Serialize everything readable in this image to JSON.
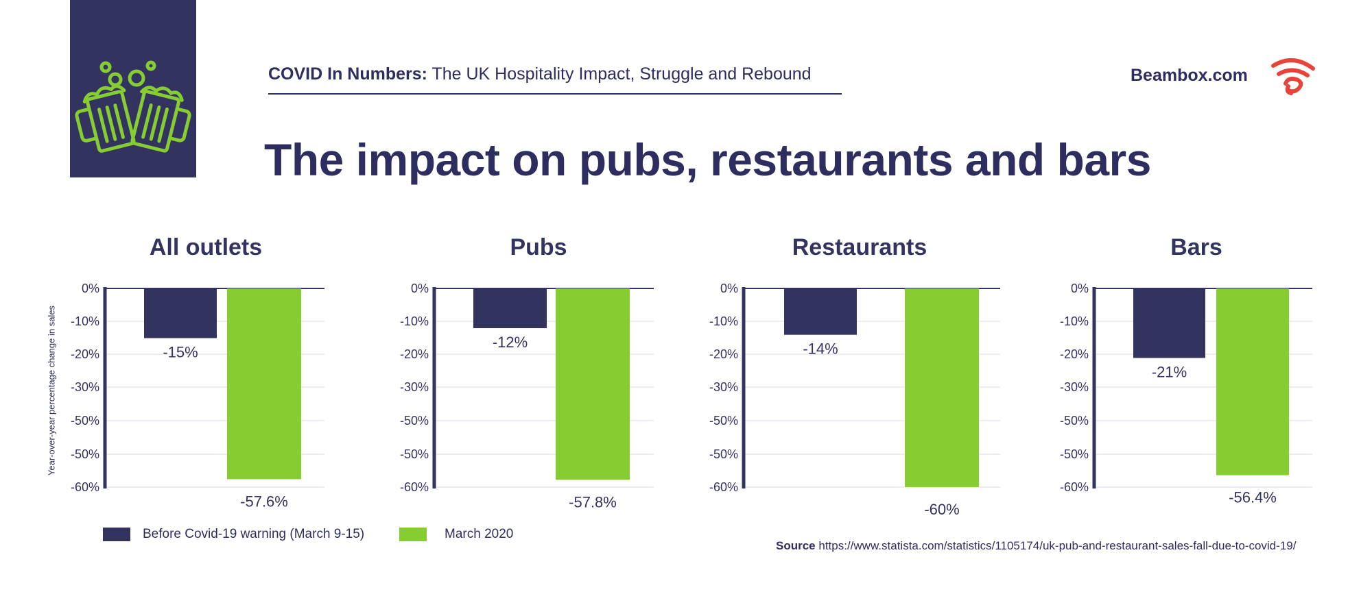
{
  "header": {
    "subtitle_bold": "COVID In Numbers:",
    "subtitle_rest": " The UK Hospitality Impact, Struggle and Rebound",
    "brand": "Beambox.com",
    "title": "The impact on pubs, restaurants and bars",
    "logo_icon": "beer-mugs-icon",
    "brand_icon": "beambox-wifi-icon"
  },
  "colors": {
    "navy": "#33335f",
    "green": "#86cd32",
    "brand_red": "#e8433b",
    "grid": "#e6e6ee"
  },
  "legend": {
    "before_label": "Before Covid-19 warning (March 9-15)",
    "march_label": "March 2020"
  },
  "source": {
    "label": "Source",
    "url": "https://www.statista.com/statistics/1105174/uk-pub-and-restaurant-sales-fall-due-to-covid-19/"
  },
  "chart_data": [
    {
      "type": "bar",
      "title": "All outlets",
      "ylabel": "Year-over-year percentage change in sales",
      "yticks": [
        "0%",
        "-10%",
        "-20%",
        "-30%",
        "-50%",
        "-50%",
        "-60%"
      ],
      "ylim": [
        -60,
        0
      ],
      "series": [
        {
          "name": "Before Covid-19 warning (March 9-15)",
          "values": [
            -15
          ],
          "labels": [
            "-15%"
          ]
        },
        {
          "name": "March 2020",
          "values": [
            -57.6
          ],
          "labels": [
            "-57.6%"
          ]
        }
      ]
    },
    {
      "type": "bar",
      "title": "Pubs",
      "yticks": [
        "0%",
        "-10%",
        "-20%",
        "-30%",
        "-50%",
        "-50%",
        "-60%"
      ],
      "ylim": [
        -60,
        0
      ],
      "series": [
        {
          "name": "Before Covid-19 warning (March 9-15)",
          "values": [
            -12
          ],
          "labels": [
            "-12%"
          ]
        },
        {
          "name": "March 2020",
          "values": [
            -57.8
          ],
          "labels": [
            "-57.8%"
          ]
        }
      ]
    },
    {
      "type": "bar",
      "title": "Restaurants",
      "yticks": [
        "0%",
        "-10%",
        "-20%",
        "-30%",
        "-50%",
        "-50%",
        "-60%"
      ],
      "ylim": [
        -60,
        0
      ],
      "series": [
        {
          "name": "Before Covid-19 warning (March 9-15)",
          "values": [
            -14
          ],
          "labels": [
            "-14%"
          ]
        },
        {
          "name": "March 2020",
          "values": [
            -60
          ],
          "labels": [
            "-60%"
          ]
        }
      ]
    },
    {
      "type": "bar",
      "title": "Bars",
      "yticks": [
        "0%",
        "-10%",
        "-20%",
        "-30%",
        "-50%",
        "-50%",
        "-60%"
      ],
      "ylim": [
        -60,
        0
      ],
      "series": [
        {
          "name": "Before Covid-19 warning (March 9-15)",
          "values": [
            -21
          ],
          "labels": [
            "-21%"
          ]
        },
        {
          "name": "March 2020",
          "values": [
            -56.4
          ],
          "labels": [
            "-56.4%"
          ]
        }
      ]
    }
  ]
}
